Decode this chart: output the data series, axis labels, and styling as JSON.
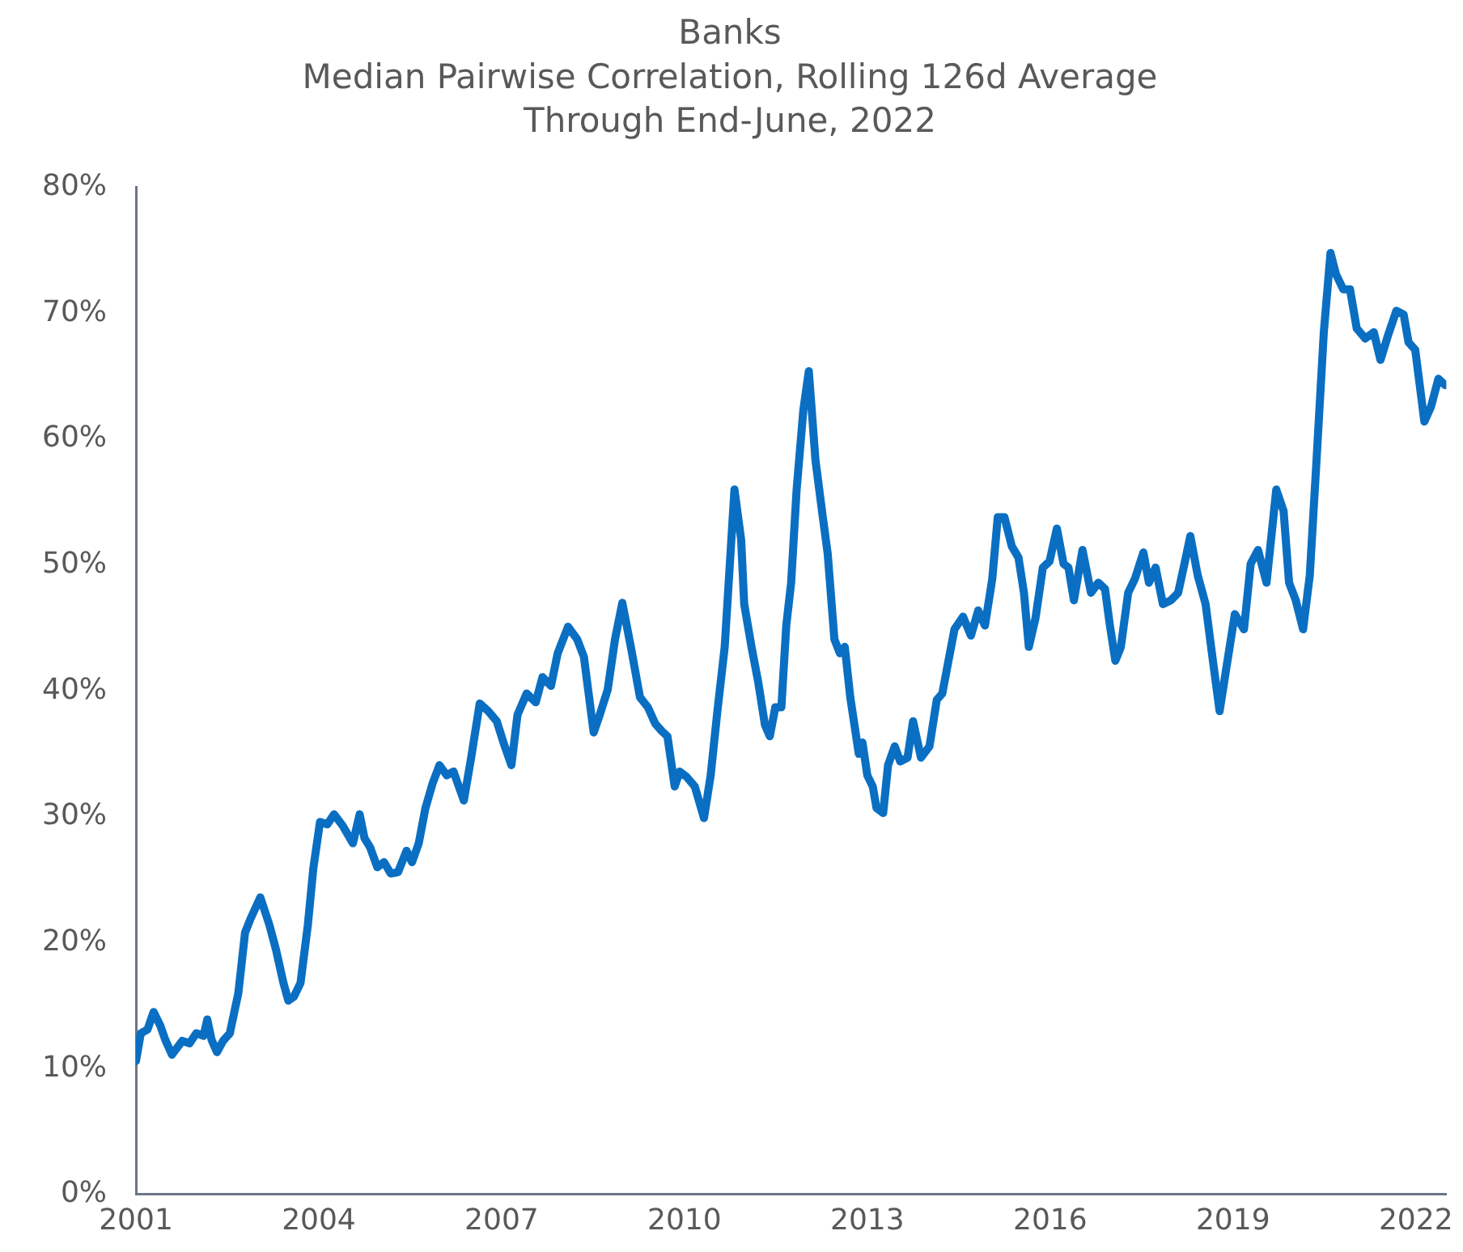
{
  "chart_data": {
    "type": "line",
    "title": "Banks\nMedian Pairwise Correlation, Rolling 126d Average\nThrough End-June, 2022",
    "x": [
      2001.0,
      2001.08,
      2001.19,
      2001.29,
      2001.4,
      2001.48,
      2001.59,
      2001.76,
      2001.88,
      2001.99,
      2002.11,
      2002.17,
      2002.24,
      2002.33,
      2002.43,
      2002.54,
      2002.68,
      2002.79,
      2002.88,
      2003.04,
      2003.19,
      2003.3,
      2003.42,
      2003.5,
      2003.59,
      2003.7,
      2003.82,
      2003.91,
      2004.02,
      2004.14,
      2004.25,
      2004.39,
      2004.56,
      2004.67,
      2004.75,
      2004.84,
      2004.96,
      2005.07,
      2005.18,
      2005.3,
      2005.44,
      2005.53,
      2005.64,
      2005.75,
      2005.87,
      2005.98,
      2006.1,
      2006.21,
      2006.38,
      2006.5,
      2006.64,
      2006.78,
      2006.92,
      2007.03,
      2007.16,
      2007.26,
      2007.41,
      2007.56,
      2007.67,
      2007.81,
      2007.92,
      2008.09,
      2008.24,
      2008.35,
      2008.51,
      2008.61,
      2008.74,
      2008.86,
      2008.98,
      2009.12,
      2009.27,
      2009.4,
      2009.52,
      2009.63,
      2009.72,
      2009.84,
      2009.92,
      2010.03,
      2010.17,
      2010.32,
      2010.43,
      2010.54,
      2010.66,
      2010.82,
      2010.93,
      2010.98,
      2011.1,
      2011.21,
      2011.32,
      2011.4,
      2011.49,
      2011.59,
      2011.67,
      2011.75,
      2011.84,
      2011.95,
      2012.04,
      2012.15,
      2012.27,
      2012.35,
      2012.46,
      2012.55,
      2012.63,
      2012.72,
      2012.86,
      2012.92,
      2013.0,
      2013.09,
      2013.15,
      2013.26,
      2013.34,
      2013.45,
      2013.54,
      2013.66,
      2013.75,
      2013.88,
      2014.02,
      2014.14,
      2014.23,
      2014.32,
      2014.43,
      2014.57,
      2014.7,
      2014.82,
      2014.93,
      2015.05,
      2015.14,
      2015.25,
      2015.37,
      2015.48,
      2015.57,
      2015.65,
      2015.76,
      2015.88,
      2015.99,
      2016.11,
      2016.22,
      2016.3,
      2016.39,
      2016.53,
      2016.67,
      2016.79,
      2016.9,
      2016.98,
      2017.07,
      2017.16,
      2017.28,
      2017.39,
      2017.53,
      2017.62,
      2017.73,
      2017.85,
      2017.98,
      2018.1,
      2018.19,
      2018.3,
      2018.42,
      2018.55,
      2018.67,
      2018.78,
      2018.89,
      2019.03,
      2019.18,
      2019.29,
      2019.41,
      2019.55,
      2019.71,
      2019.83,
      2019.92,
      2020.03,
      2020.15,
      2020.26,
      2020.37,
      2020.49,
      2020.6,
      2020.69,
      2020.81,
      2020.92,
      2021.03,
      2021.17,
      2021.31,
      2021.42,
      2021.54,
      2021.68,
      2021.8,
      2021.88,
      2021.99,
      2022.14,
      2022.25,
      2022.37,
      2022.48
    ],
    "series": [
      {
        "color": "#0a6fc2",
        "values": [
          10.6,
          12.8,
          13.1,
          14.5,
          13.4,
          12.3,
          11.1,
          12.2,
          12.0,
          12.8,
          12.6,
          13.9,
          12.3,
          11.3,
          12.2,
          12.8,
          16.0,
          20.8,
          21.9,
          23.6,
          21.4,
          19.4,
          16.8,
          15.4,
          15.7,
          16.8,
          21.4,
          25.9,
          29.6,
          29.4,
          30.2,
          29.3,
          27.9,
          30.2,
          28.3,
          27.6,
          26.0,
          26.4,
          25.5,
          25.6,
          27.3,
          26.4,
          27.9,
          30.7,
          32.7,
          34.1,
          33.3,
          33.6,
          31.3,
          34.7,
          39.0,
          38.4,
          37.6,
          35.9,
          34.1,
          38.1,
          39.8,
          39.1,
          41.1,
          40.4,
          43.0,
          45.1,
          44.1,
          42.7,
          36.7,
          38.1,
          40.1,
          44.1,
          47.0,
          43.5,
          39.5,
          38.7,
          37.4,
          36.8,
          36.4,
          32.4,
          33.6,
          33.2,
          32.4,
          29.9,
          33.3,
          38.4,
          43.5,
          56.0,
          52.0,
          46.9,
          43.5,
          40.7,
          37.3,
          36.4,
          38.7,
          38.7,
          45.2,
          48.6,
          56.0,
          62.3,
          65.4,
          58.3,
          53.8,
          50.9,
          44.1,
          43.0,
          43.5,
          39.5,
          35.0,
          35.9,
          33.3,
          32.4,
          30.7,
          30.3,
          34.1,
          35.6,
          34.4,
          34.7,
          37.6,
          34.7,
          35.6,
          39.3,
          39.8,
          42.1,
          44.9,
          45.9,
          44.4,
          46.4,
          45.2,
          48.9,
          53.8,
          53.8,
          51.5,
          50.6,
          47.8,
          43.5,
          45.8,
          49.8,
          50.3,
          52.9,
          50.1,
          49.8,
          47.2,
          51.2,
          47.8,
          48.6,
          48.1,
          45.2,
          42.4,
          43.5,
          47.8,
          48.9,
          51.0,
          48.6,
          49.8,
          46.9,
          47.2,
          47.8,
          49.8,
          52.3,
          49.2,
          46.9,
          42.4,
          38.4,
          41.8,
          46.1,
          44.9,
          50.1,
          51.2,
          48.6,
          56.0,
          54.3,
          48.6,
          47.2,
          44.9,
          49.2,
          58.3,
          68.5,
          74.8,
          73.1,
          71.9,
          71.9,
          68.8,
          68.0,
          68.5,
          66.3,
          68.2,
          70.2,
          69.9,
          67.7,
          67.1,
          61.4,
          62.6,
          64.8,
          64.3
        ]
      }
    ],
    "xlim": [
      2001,
      2022.5
    ],
    "xticks": [
      2001,
      2004,
      2007,
      2010,
      2013,
      2016,
      2019,
      2022
    ],
    "ylim": [
      0,
      80
    ],
    "yticks": [
      {
        "value": 0,
        "label": "0%"
      },
      {
        "value": 10,
        "label": "10%"
      },
      {
        "value": 20,
        "label": "20%"
      },
      {
        "value": 30,
        "label": "30%"
      },
      {
        "value": 40,
        "label": "40%"
      },
      {
        "value": 50,
        "label": "50%"
      },
      {
        "value": 60,
        "label": "60%"
      },
      {
        "value": 70,
        "label": "70%"
      },
      {
        "value": 80,
        "label": "80%"
      }
    ],
    "grid": false,
    "legend": false,
    "marker": "none",
    "line_style": "solid"
  }
}
